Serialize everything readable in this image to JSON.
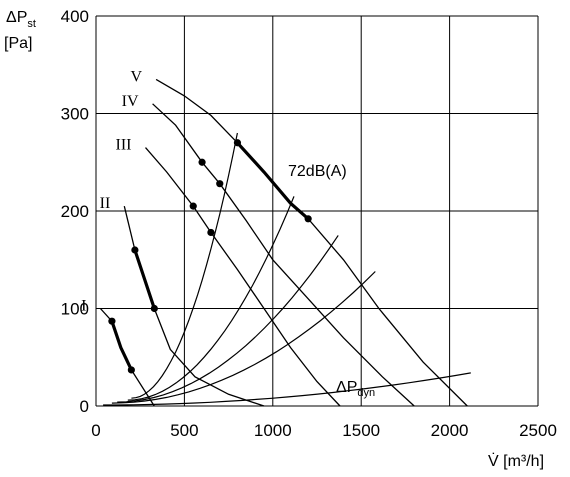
{
  "chart_data": {
    "type": "line",
    "title": "",
    "ylabel_main": "ΔP",
    "ylabel_sub": "st",
    "ylabel_unit": "[Pa]",
    "xlabel": "V̇ [m³/h]",
    "xlim": [
      0,
      2500
    ],
    "ylim": [
      0,
      400
    ],
    "xticks": [
      "0",
      "500",
      "1000",
      "1500",
      "2000",
      "2500"
    ],
    "yticks": [
      "0",
      "100",
      "200",
      "300",
      "400"
    ],
    "grid": true,
    "fan_curves": [
      {
        "name": "I",
        "x": [
          25,
          90,
          140,
          200,
          330
        ],
        "y": [
          100,
          87,
          60,
          37,
          0
        ]
      },
      {
        "name": "II",
        "x": [
          160,
          220,
          275,
          330,
          420,
          560,
          750,
          950
        ],
        "y": [
          205,
          160,
          130,
          100,
          58,
          30,
          12,
          0
        ]
      },
      {
        "name": "III",
        "x": [
          280,
          400,
          550,
          650,
          800,
          950,
          1100,
          1250,
          1380
        ],
        "y": [
          265,
          240,
          205,
          178,
          140,
          100,
          60,
          25,
          0
        ]
      },
      {
        "name": "IV",
        "x": [
          320,
          450,
          600,
          700,
          850,
          1000,
          1200,
          1400,
          1620,
          1800
        ],
        "y": [
          310,
          288,
          250,
          228,
          190,
          150,
          110,
          70,
          30,
          0
        ]
      },
      {
        "name": "V",
        "x": [
          340,
          500,
          650,
          800,
          950,
          1100,
          1200,
          1400,
          1600,
          1850,
          2100
        ],
        "y": [
          335,
          318,
          298,
          270,
          240,
          208,
          192,
          150,
          100,
          45,
          0
        ]
      }
    ],
    "bold_segments": [
      {
        "curve": "I",
        "x": [
          90,
          140,
          200
        ],
        "y": [
          87,
          60,
          37
        ]
      },
      {
        "curve": "II",
        "x": [
          220,
          275,
          330
        ],
        "y": [
          160,
          130,
          100
        ]
      },
      {
        "curve": "V",
        "x": [
          800,
          950,
          1100,
          1200
        ],
        "y": [
          270,
          240,
          208,
          192
        ]
      }
    ],
    "points": [
      {
        "x": 90,
        "y": 87
      },
      {
        "x": 200,
        "y": 37
      },
      {
        "x": 220,
        "y": 160
      },
      {
        "x": 330,
        "y": 100
      },
      {
        "x": 550,
        "y": 205
      },
      {
        "x": 650,
        "y": 178
      },
      {
        "x": 600,
        "y": 250
      },
      {
        "x": 700,
        "y": 228
      },
      {
        "x": 800,
        "y": 270
      },
      {
        "x": 1200,
        "y": 192
      }
    ],
    "system_curves": [
      {
        "x": [
          200,
          800
        ],
        "y": [
          8,
          280
        ]
      },
      {
        "x": [
          180,
          1120
        ],
        "y": [
          6,
          215
        ]
      },
      {
        "x": [
          120,
          1370
        ],
        "y": [
          4,
          175
        ]
      },
      {
        "x": [
          90,
          1580
        ],
        "y": [
          3,
          138
        ]
      },
      {
        "x": [
          40,
          2120
        ],
        "y": [
          1,
          34
        ]
      }
    ],
    "annotations": {
      "noise_label": "72dB(A)",
      "dyn_main": "ΔP",
      "dyn_sub": "dyn"
    }
  }
}
